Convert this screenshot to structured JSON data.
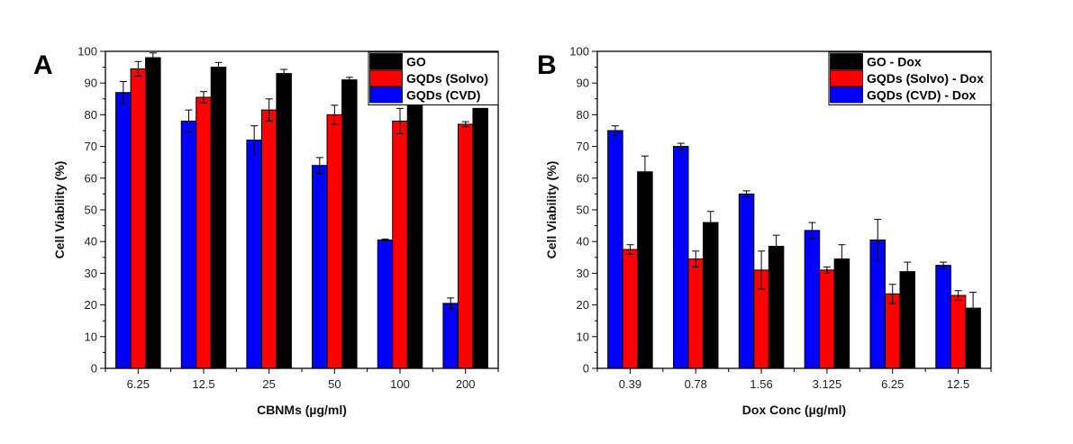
{
  "chart_data": [
    {
      "type": "bar",
      "panel": "A",
      "title": "",
      "xlabel": "CBNMs (µg/ml)",
      "ylabel": "Cell Viability (%)",
      "ylim": [
        0,
        100
      ],
      "yticks": [
        0,
        10,
        20,
        30,
        40,
        50,
        60,
        70,
        80,
        90,
        100
      ],
      "categories": [
        "6.25",
        "12.5",
        "25",
        "50",
        "100",
        "200"
      ],
      "legend_position": "top-right",
      "series": [
        {
          "name": "GQDs (CVD)",
          "color": "#0000ff",
          "values": [
            87,
            78,
            72,
            64,
            40.5,
            20.5
          ],
          "errors": [
            3.5,
            3.5,
            4.5,
            2.5,
            0.3,
            1.7
          ]
        },
        {
          "name": "GQDs (Solvo)",
          "color": "#ff0000",
          "values": [
            94.5,
            85.5,
            81.5,
            80,
            78,
            77
          ],
          "errors": [
            2.3,
            1.8,
            3.5,
            3,
            4,
            0.8
          ]
        },
        {
          "name": "GO",
          "color": "#000000",
          "values": [
            98,
            95,
            93,
            91,
            84,
            82
          ],
          "errors": [
            1.5,
            1.5,
            1.3,
            0.8,
            0,
            0
          ]
        }
      ],
      "legend_order": [
        "GO",
        "GQDs (Solvo)",
        "GQDs (CVD)"
      ]
    },
    {
      "type": "bar",
      "panel": "B",
      "title": "",
      "xlabel": "Dox Conc (µg/ml)",
      "ylabel": "Cell Viability (%)",
      "ylim": [
        0,
        100
      ],
      "yticks": [
        0,
        10,
        20,
        30,
        40,
        50,
        60,
        70,
        80,
        90,
        100
      ],
      "categories": [
        "0.39",
        "0.78",
        "1.56",
        "3.125",
        "6.25",
        "12.5"
      ],
      "legend_position": "top-right",
      "series": [
        {
          "name": "GQDs (CVD) - Dox",
          "color": "#0000ff",
          "values": [
            75,
            70,
            55,
            43.5,
            40.5,
            32.5
          ],
          "errors": [
            1.5,
            1,
            1,
            2.5,
            6.5,
            1
          ]
        },
        {
          "name": "GQDs (Solvo) - Dox",
          "color": "#ff0000",
          "values": [
            37.5,
            34.5,
            31,
            31,
            23.5,
            23
          ],
          "errors": [
            1.5,
            2.5,
            6,
            1,
            3,
            1.5
          ]
        },
        {
          "name": "GO - Dox",
          "color": "#000000",
          "values": [
            62,
            46,
            38.5,
            34.5,
            30.5,
            19
          ],
          "errors": [
            5,
            3.5,
            3.5,
            4.5,
            3,
            5
          ]
        }
      ],
      "legend_order": [
        "GO - Dox",
        "GQDs (Solvo) - Dox",
        "GQDs (CVD) - Dox"
      ]
    }
  ]
}
